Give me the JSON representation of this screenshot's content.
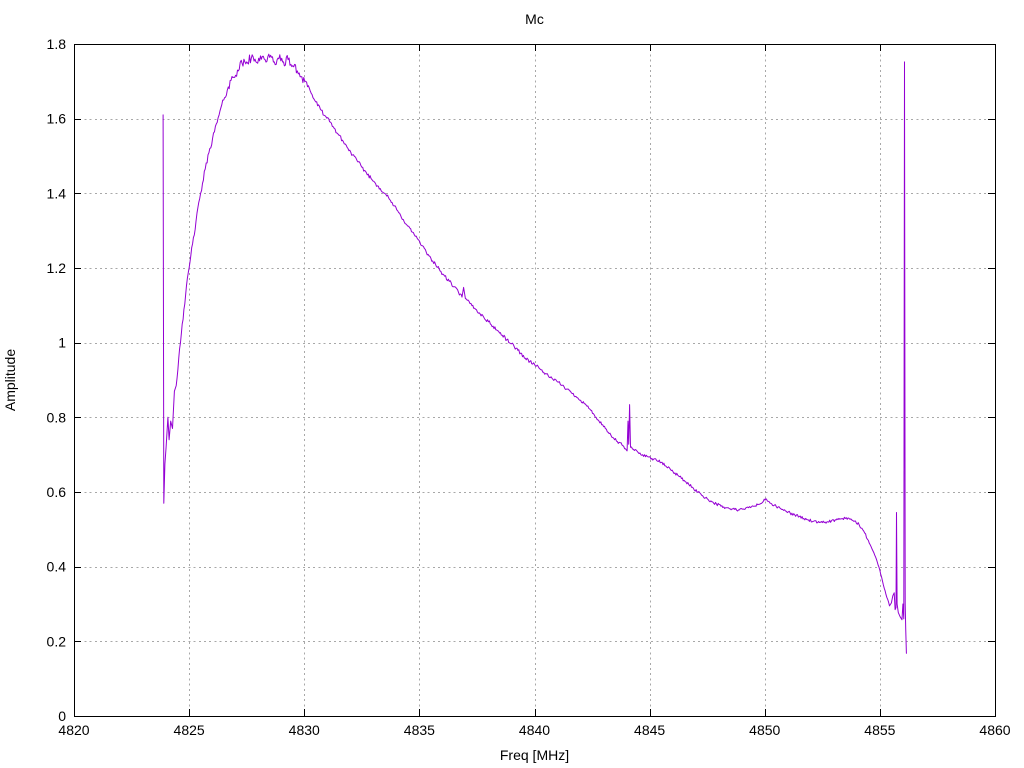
{
  "chart_data": {
    "type": "line",
    "title": "Mc",
    "xlabel": "Freq [MHz]",
    "ylabel": "Amplitude",
    "xlim": [
      4820,
      4860
    ],
    "ylim": [
      0,
      1.8
    ],
    "x_ticks": [
      4820,
      4825,
      4830,
      4835,
      4840,
      4845,
      4850,
      4855,
      4860
    ],
    "y_ticks": [
      0,
      0.2,
      0.4,
      0.6,
      0.8,
      1,
      1.2,
      1.4,
      1.6,
      1.8
    ],
    "grid": true,
    "legend": "none",
    "colors": {
      "line": "#9400d3",
      "grid": "#a8a8a8",
      "axis": "#000000",
      "text": "#000000",
      "background": "#ffffff"
    },
    "noise_regions": [
      {
        "from": 4824.4,
        "to": 4826.6,
        "amp": 0.008
      },
      {
        "from": 4826.6,
        "to": 4830.2,
        "amp": 0.013
      },
      {
        "from": 4830.2,
        "to": 4840.0,
        "amp": 0.005
      },
      {
        "from": 4840.0,
        "to": 4854.5,
        "amp": 0.004
      },
      {
        "from": 4854.5,
        "to": 4856.2,
        "amp": 0.0025
      }
    ],
    "series": [
      {
        "name": "Mc",
        "points": [
          [
            4823.87,
            1.61
          ],
          [
            4823.9,
            0.57
          ],
          [
            4823.95,
            0.675
          ],
          [
            4824.0,
            0.72
          ],
          [
            4824.08,
            0.8
          ],
          [
            4824.13,
            0.74
          ],
          [
            4824.2,
            0.79
          ],
          [
            4824.28,
            0.77
          ],
          [
            4824.36,
            0.87
          ],
          [
            4824.44,
            0.885
          ],
          [
            4824.55,
            0.96
          ],
          [
            4824.7,
            1.05
          ],
          [
            4824.85,
            1.13
          ],
          [
            4825.0,
            1.2
          ],
          [
            4825.15,
            1.265
          ],
          [
            4825.3,
            1.325
          ],
          [
            4825.5,
            1.4
          ],
          [
            4825.7,
            1.465
          ],
          [
            4825.9,
            1.52
          ],
          [
            4826.1,
            1.565
          ],
          [
            4826.3,
            1.61
          ],
          [
            4826.5,
            1.65
          ],
          [
            4826.7,
            1.685
          ],
          [
            4826.9,
            1.71
          ],
          [
            4827.1,
            1.73
          ],
          [
            4827.3,
            1.748
          ],
          [
            4827.5,
            1.752
          ],
          [
            4827.7,
            1.762
          ],
          [
            4827.9,
            1.752
          ],
          [
            4828.1,
            1.768
          ],
          [
            4828.3,
            1.758
          ],
          [
            4828.5,
            1.764
          ],
          [
            4828.7,
            1.752
          ],
          [
            4828.9,
            1.76
          ],
          [
            4829.1,
            1.752
          ],
          [
            4829.3,
            1.758
          ],
          [
            4829.5,
            1.742
          ],
          [
            4829.7,
            1.728
          ],
          [
            4829.9,
            1.712
          ],
          [
            4830.1,
            1.698
          ],
          [
            4830.3,
            1.668
          ],
          [
            4830.5,
            1.645
          ],
          [
            4830.7,
            1.625
          ],
          [
            4830.9,
            1.608
          ],
          [
            4831.1,
            1.592
          ],
          [
            4831.3,
            1.574
          ],
          [
            4831.5,
            1.556
          ],
          [
            4831.7,
            1.538
          ],
          [
            4831.9,
            1.52
          ],
          [
            4832.1,
            1.503
          ],
          [
            4832.3,
            1.487
          ],
          [
            4832.5,
            1.47
          ],
          [
            4832.7,
            1.455
          ],
          [
            4832.9,
            1.44
          ],
          [
            4833.1,
            1.426
          ],
          [
            4833.3,
            1.413
          ],
          [
            4833.5,
            1.4
          ],
          [
            4833.7,
            1.384
          ],
          [
            4833.9,
            1.366
          ],
          [
            4834.1,
            1.348
          ],
          [
            4834.3,
            1.33
          ],
          [
            4834.5,
            1.312
          ],
          [
            4834.7,
            1.296
          ],
          [
            4834.9,
            1.28
          ],
          [
            4835.1,
            1.26
          ],
          [
            4835.3,
            1.242
          ],
          [
            4835.5,
            1.226
          ],
          [
            4835.7,
            1.21
          ],
          [
            4835.9,
            1.192
          ],
          [
            4836.1,
            1.178
          ],
          [
            4836.3,
            1.164
          ],
          [
            4836.5,
            1.15
          ],
          [
            4836.7,
            1.135
          ],
          [
            4836.85,
            1.122
          ],
          [
            4836.92,
            1.148
          ],
          [
            4837.0,
            1.118
          ],
          [
            4837.2,
            1.105
          ],
          [
            4837.4,
            1.092
          ],
          [
            4837.6,
            1.08
          ],
          [
            4837.8,
            1.068
          ],
          [
            4838.0,
            1.056
          ],
          [
            4838.2,
            1.044
          ],
          [
            4838.4,
            1.032
          ],
          [
            4838.6,
            1.02
          ],
          [
            4838.8,
            1.008
          ],
          [
            4839.0,
            0.997
          ],
          [
            4839.2,
            0.985
          ],
          [
            4839.4,
            0.972
          ],
          [
            4839.6,
            0.958
          ],
          [
            4839.8,
            0.95
          ],
          [
            4840.0,
            0.942
          ],
          [
            4840.2,
            0.932
          ],
          [
            4840.4,
            0.921
          ],
          [
            4840.6,
            0.911
          ],
          [
            4840.8,
            0.902
          ],
          [
            4841.0,
            0.895
          ],
          [
            4841.2,
            0.886
          ],
          [
            4841.4,
            0.876
          ],
          [
            4841.6,
            0.866
          ],
          [
            4841.8,
            0.856
          ],
          [
            4842.0,
            0.846
          ],
          [
            4842.2,
            0.836
          ],
          [
            4842.4,
            0.822
          ],
          [
            4842.6,
            0.806
          ],
          [
            4842.8,
            0.79
          ],
          [
            4843.0,
            0.775
          ],
          [
            4843.2,
            0.76
          ],
          [
            4843.4,
            0.746
          ],
          [
            4843.6,
            0.735
          ],
          [
            4843.8,
            0.726
          ],
          [
            4843.95,
            0.716
          ],
          [
            4844.02,
            0.71
          ],
          [
            4844.06,
            0.79
          ],
          [
            4844.09,
            0.728
          ],
          [
            4844.13,
            0.834
          ],
          [
            4844.17,
            0.72
          ],
          [
            4844.3,
            0.714
          ],
          [
            4844.5,
            0.706
          ],
          [
            4844.7,
            0.7
          ],
          [
            4844.9,
            0.695
          ],
          [
            4845.1,
            0.69
          ],
          [
            4845.3,
            0.685
          ],
          [
            4845.5,
            0.679
          ],
          [
            4845.7,
            0.67
          ],
          [
            4845.9,
            0.661
          ],
          [
            4846.1,
            0.651
          ],
          [
            4846.3,
            0.641
          ],
          [
            4846.5,
            0.631
          ],
          [
            4846.7,
            0.62
          ],
          [
            4846.9,
            0.61
          ],
          [
            4847.1,
            0.6
          ],
          [
            4847.3,
            0.59
          ],
          [
            4847.5,
            0.582
          ],
          [
            4847.7,
            0.574
          ],
          [
            4847.9,
            0.568
          ],
          [
            4848.1,
            0.562
          ],
          [
            4848.3,
            0.558
          ],
          [
            4848.5,
            0.555
          ],
          [
            4848.7,
            0.553
          ],
          [
            4848.9,
            0.552
          ],
          [
            4849.1,
            0.554
          ],
          [
            4849.3,
            0.558
          ],
          [
            4849.5,
            0.562
          ],
          [
            4849.7,
            0.566
          ],
          [
            4849.9,
            0.572
          ],
          [
            4850.05,
            0.582
          ],
          [
            4850.15,
            0.575
          ],
          [
            4850.3,
            0.568
          ],
          [
            4850.5,
            0.561
          ],
          [
            4850.7,
            0.555
          ],
          [
            4850.9,
            0.549
          ],
          [
            4851.1,
            0.544
          ],
          [
            4851.3,
            0.539
          ],
          [
            4851.5,
            0.534
          ],
          [
            4851.7,
            0.529
          ],
          [
            4851.9,
            0.525
          ],
          [
            4852.1,
            0.521
          ],
          [
            4852.3,
            0.518
          ],
          [
            4852.5,
            0.518
          ],
          [
            4852.7,
            0.52
          ],
          [
            4852.9,
            0.523
          ],
          [
            4853.1,
            0.525
          ],
          [
            4853.3,
            0.528
          ],
          [
            4853.5,
            0.529
          ],
          [
            4853.7,
            0.527
          ],
          [
            4853.9,
            0.522
          ],
          [
            4854.1,
            0.512
          ],
          [
            4854.3,
            0.495
          ],
          [
            4854.5,
            0.47
          ],
          [
            4854.7,
            0.442
          ],
          [
            4854.85,
            0.42
          ],
          [
            4855.0,
            0.39
          ],
          [
            4855.15,
            0.352
          ],
          [
            4855.3,
            0.318
          ],
          [
            4855.42,
            0.295
          ],
          [
            4855.5,
            0.303
          ],
          [
            4855.56,
            0.322
          ],
          [
            4855.62,
            0.33
          ],
          [
            4855.66,
            0.285
          ],
          [
            4855.7,
            0.29
          ],
          [
            4855.72,
            0.545
          ],
          [
            4855.75,
            0.3
          ],
          [
            4855.8,
            0.277
          ],
          [
            4855.88,
            0.266
          ],
          [
            4855.96,
            0.258
          ],
          [
            4856.0,
            0.3
          ],
          [
            4856.04,
            0.26
          ],
          [
            4856.07,
            1.752
          ],
          [
            4856.1,
            0.3
          ],
          [
            4856.12,
            0.235
          ],
          [
            4856.15,
            0.168
          ]
        ]
      }
    ]
  }
}
